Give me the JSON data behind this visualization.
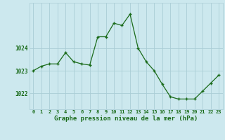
{
  "x": [
    0,
    1,
    2,
    3,
    4,
    5,
    6,
    7,
    8,
    9,
    10,
    11,
    12,
    13,
    14,
    15,
    16,
    17,
    18,
    19,
    20,
    21,
    22,
    23
  ],
  "y": [
    1023.0,
    1023.2,
    1023.3,
    1023.3,
    1023.8,
    1023.4,
    1023.3,
    1023.25,
    1024.5,
    1024.5,
    1025.1,
    1025.0,
    1025.5,
    1024.0,
    1023.4,
    1023.0,
    1022.4,
    1021.85,
    1021.75,
    1021.75,
    1021.75,
    1022.1,
    1022.45,
    1022.8
  ],
  "line_color": "#1a6b1a",
  "marker_color": "#1a6b1a",
  "bg_color": "#cce8ee",
  "grid_color": "#aacdd6",
  "xlabel": "Graphe pression niveau de la mer (hPa)",
  "xlabel_color": "#1a6b1a",
  "tick_color": "#1a6b1a",
  "ylabel_ticks": [
    1022,
    1023,
    1024
  ],
  "xlim": [
    -0.5,
    23.5
  ],
  "ylim": [
    1021.3,
    1026.0
  ]
}
